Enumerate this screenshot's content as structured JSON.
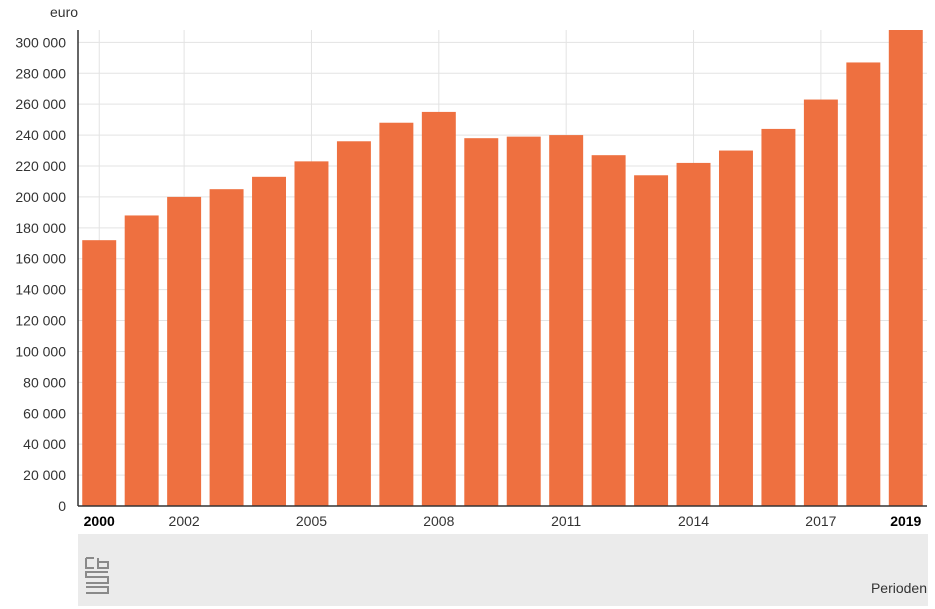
{
  "chart_data": {
    "type": "bar",
    "y_unit_label": "euro",
    "xlabel": "Perioden",
    "categories": [
      "2000",
      "2001",
      "2002",
      "2003",
      "2004",
      "2005",
      "2006",
      "2007",
      "2008",
      "2009",
      "2010",
      "2011",
      "2012",
      "2013",
      "2014",
      "2015",
      "2016",
      "2017",
      "2018",
      "2019"
    ],
    "values": [
      172000,
      188000,
      200000,
      205000,
      213000,
      223000,
      236000,
      248000,
      255000,
      238000,
      239000,
      240000,
      227000,
      214000,
      222000,
      230000,
      244000,
      263000,
      287000,
      308000
    ],
    "x_tick_labels": [
      "2000",
      "2002",
      "2005",
      "2008",
      "2011",
      "2014",
      "2017",
      "2019"
    ],
    "x_tick_bold": [
      "2000",
      "2019"
    ],
    "y_ticks": [
      0,
      20000,
      40000,
      60000,
      80000,
      100000,
      120000,
      140000,
      160000,
      180000,
      200000,
      220000,
      240000,
      260000,
      280000,
      300000
    ],
    "y_tick_labels": [
      "0",
      "20 000",
      "40 000",
      "60 000",
      "80 000",
      "100 000",
      "120 000",
      "140 000",
      "160 000",
      "180 000",
      "200 000",
      "220 000",
      "240 000",
      "260 000",
      "280 000",
      "300 000"
    ],
    "ylim": [
      0,
      308000
    ],
    "grid": true,
    "bar_color": "#ee7040",
    "footer_color": "#ebebeb"
  },
  "logo_icon": "cbs-logo-icon"
}
